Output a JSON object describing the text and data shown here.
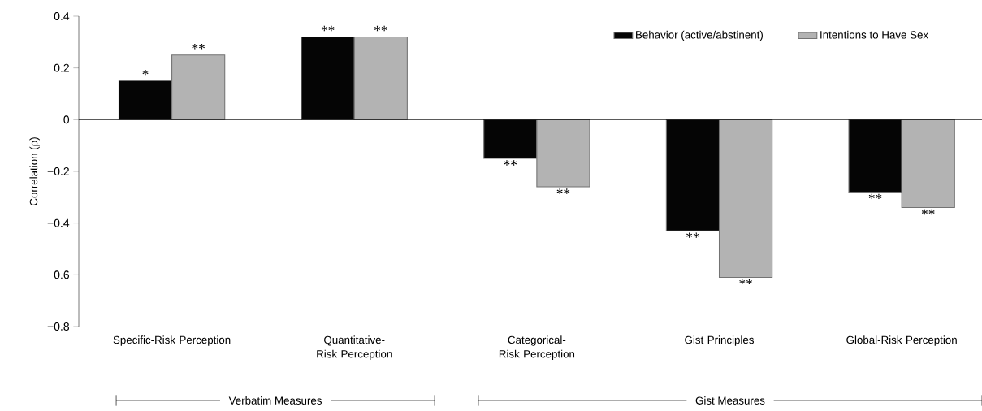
{
  "chart_data": {
    "type": "bar",
    "ylabel": "Correlation (ρ)",
    "categories": [
      "Specific-Risk Perception",
      "Quantitative-Risk Perception",
      "Categorical-Risk Perception",
      "Gist Principles",
      "Global-Risk Perception"
    ],
    "series": [
      {
        "name": "Behavior (active/abstinent)",
        "color": "#050505",
        "values": [
          0.15,
          0.32,
          -0.15,
          -0.43,
          -0.28
        ],
        "value_labels": [
          "*",
          "**",
          "**",
          "**",
          "**"
        ]
      },
      {
        "name": "Intentions to Have Sex",
        "color": "#b3b3b3",
        "values": [
          0.25,
          0.32,
          -0.26,
          -0.61,
          -0.34
        ],
        "value_labels": [
          "**",
          "**",
          "**",
          "**",
          "**"
        ]
      }
    ],
    "ylim": [
      -0.8,
      0.4
    ],
    "yticks": [
      0.4,
      0.2,
      0,
      {
        "value": -0.2,
        "label": "−0.2"
      },
      {
        "value": -0.4,
        "label": "−0.4"
      },
      {
        "value": -0.6,
        "label": "−0.6"
      },
      {
        "value": -0.8,
        "label": "−0.8"
      }
    ],
    "legend": "top right",
    "annotations": [
      "Verbatim Measures",
      "Gist Measures"
    ]
  }
}
